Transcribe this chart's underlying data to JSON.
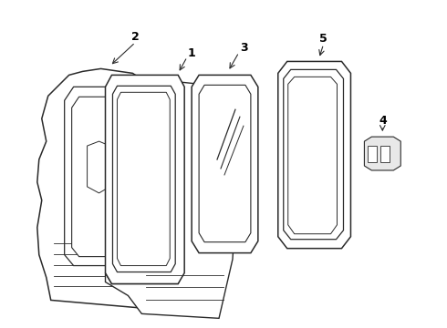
{
  "background_color": "#ffffff",
  "line_color": "#2a2a2a",
  "label_color": "#000000",
  "fig_width": 4.9,
  "fig_height": 3.6,
  "dpi": 100
}
